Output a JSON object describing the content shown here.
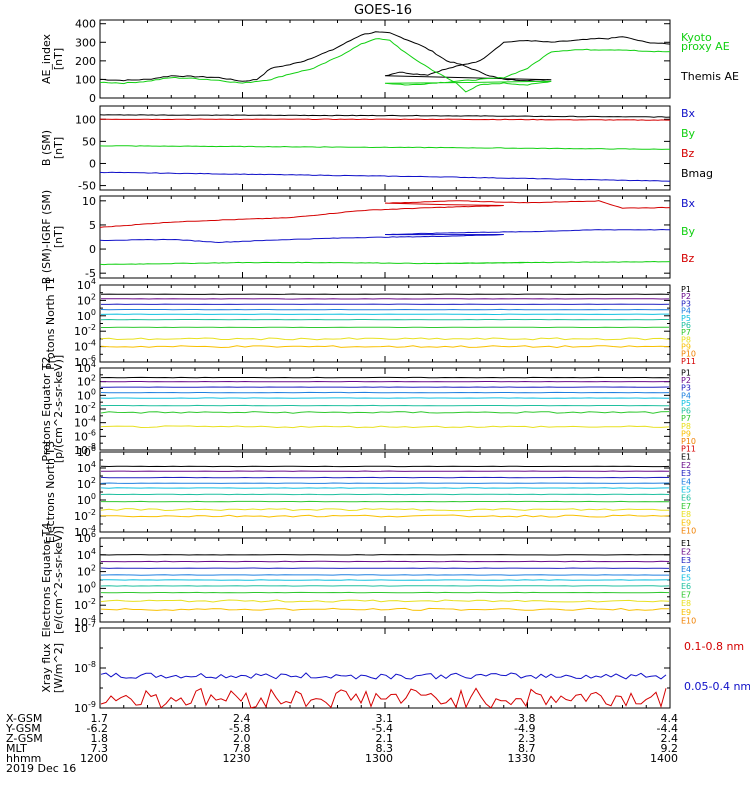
{
  "title": "GOES-16",
  "colors": {
    "black": "#000000",
    "red": "#d40000",
    "green": "#12d012",
    "blue": "#1010c8",
    "ch": [
      "#000000",
      "#6a0a8a",
      "#2020c0",
      "#2080e0",
      "#10c0e0",
      "#20c0a0",
      "#30c830",
      "#e8e020",
      "#f8c000",
      "#f08000",
      "#d40000"
    ]
  },
  "chart_data": [
    {
      "type": "line",
      "ylabel": "AE_index [nT]",
      "yticks": [
        "400",
        "300",
        "200",
        "100",
        "0"
      ],
      "ylim": [
        0,
        420
      ],
      "legend": [
        "Kyoto",
        "proxy AE",
        "Themis AE"
      ],
      "series": [
        {
          "name": "Themis AE",
          "color": "black",
          "x": [
            1200,
            1205,
            1210,
            1215,
            1220,
            1225,
            1230,
            1233,
            1236,
            1240,
            1243,
            1246,
            1249,
            1252,
            1255,
            1258,
            1261,
            1264,
            1267,
            1270,
            1273,
            1276,
            1279,
            1282,
            1285,
            1290,
            1295,
            1300,
            1303,
            1306,
            1309,
            1312,
            1315,
            1320,
            1325,
            1330,
            1335,
            1340,
            1345,
            1347,
            1350,
            1355,
            1360
          ],
          "y": [
            100,
            95,
            100,
            120,
            115,
            110,
            90,
            100,
            160,
            180,
            200,
            230,
            260,
            300,
            340,
            355,
            350,
            320,
            290,
            250,
            200,
            180,
            150,
            120,
            100,
            95,
            100,
            120,
            140,
            130,
            125,
            150,
            170,
            200,
            300,
            310,
            300,
            310,
            320,
            320,
            330,
            300,
            290
          ]
        },
        {
          "name": "Kyoto",
          "color": "green",
          "x": [
            1200,
            1205,
            1210,
            1215,
            1220,
            1225,
            1230,
            1236,
            1240,
            1245,
            1250,
            1255,
            1258,
            1261,
            1265,
            1270,
            1275,
            1277,
            1280,
            1285,
            1290,
            1295,
            1300,
            1305,
            1310,
            1315,
            1320,
            1325,
            1330,
            1335,
            1340,
            1345,
            1350,
            1355,
            1360
          ],
          "y": [
            85,
            80,
            90,
            110,
            105,
            95,
            80,
            100,
            130,
            160,
            220,
            290,
            320,
            310,
            230,
            150,
            80,
            35,
            70,
            80,
            70,
            90,
            80,
            70,
            80,
            90,
            100,
            110,
            160,
            250,
            260,
            260,
            260,
            250,
            250
          ]
        }
      ]
    },
    {
      "type": "line",
      "ylabel": "B (SM) [nT]",
      "yticks": [
        "100",
        "50",
        "0",
        "-50"
      ],
      "ylim": [
        -60,
        130
      ],
      "legend": [
        "Bx",
        "By",
        "Bz",
        "Bmag"
      ],
      "series": [
        {
          "name": "Bmag",
          "color": "black",
          "x": [
            1200,
            1270,
            1360
          ],
          "y": [
            110,
            108,
            105
          ]
        },
        {
          "name": "Bz",
          "color": "red",
          "x": [
            1200,
            1270,
            1360
          ],
          "y": [
            100,
            100,
            98
          ]
        },
        {
          "name": "By",
          "color": "green",
          "x": [
            1200,
            1270,
            1360
          ],
          "y": [
            40,
            36,
            32
          ]
        },
        {
          "name": "Bx",
          "color": "blue",
          "x": [
            1200,
            1270,
            1360
          ],
          "y": [
            -20,
            -30,
            -40
          ]
        }
      ]
    },
    {
      "type": "line",
      "ylabel": "B (SM)-IGRF (SM) [nT]",
      "yticks": [
        "10",
        "5",
        "0",
        "-5"
      ],
      "ylim": [
        -6,
        11
      ],
      "legend": [
        "Bx",
        "By",
        "Bz"
      ],
      "series": [
        {
          "name": "Bz",
          "color": "red",
          "x": [
            1200,
            1215,
            1225,
            1240,
            1255,
            1270,
            1285,
            1300,
            1315,
            1330,
            1345,
            1350,
            1360
          ],
          "y": [
            4.5,
            5.6,
            6,
            6.5,
            8,
            8.6,
            9,
            9.5,
            10,
            9.6,
            10,
            8.5,
            8.6
          ]
        },
        {
          "name": "Bx",
          "color": "blue",
          "x": [
            1200,
            1215,
            1225,
            1240,
            1255,
            1270,
            1285,
            1300,
            1315,
            1330,
            1345,
            1360
          ],
          "y": [
            1.8,
            2,
            1.4,
            2,
            2.4,
            2.6,
            3,
            3,
            3.4,
            3.6,
            4,
            4
          ]
        },
        {
          "name": "By",
          "color": "green",
          "x": [
            1200,
            1215,
            1230,
            1250,
            1270,
            1290,
            1310,
            1330,
            1360
          ],
          "y": [
            -3.2,
            -3,
            -2.8,
            -2.8,
            -3,
            -2.8,
            -3,
            -2.8,
            -2.6
          ]
        }
      ]
    },
    {
      "type": "line",
      "scale": "log",
      "ylabel": "Protons North T1",
      "yticks": [
        "10^4",
        "10^2",
        "10^0",
        "10^-2",
        "10^-4",
        "10^-6"
      ],
      "ylim": [
        -6,
        4
      ],
      "legend": [
        "P1",
        "P2",
        "P3",
        "P4",
        "P5",
        "P6",
        "P7",
        "P8",
        "P9",
        "P10",
        "P11"
      ],
      "series": [
        {
          "name": "P1",
          "y": 2.8
        },
        {
          "name": "P2",
          "y": 2.2
        },
        {
          "name": "P3",
          "y": 1.5
        },
        {
          "name": "P4",
          "y": 0.8
        },
        {
          "name": "P5",
          "y": 0.2
        },
        {
          "name": "P6",
          "y": -0.5
        },
        {
          "name": "P7",
          "y": -1.5
        },
        {
          "name": "P8",
          "y": -3.0
        },
        {
          "name": "P9",
          "y": -4.0
        }
      ]
    },
    {
      "type": "line",
      "scale": "log",
      "ylabel": "Protons Equator T2 [p/(cm^2-s-sr-keV)]",
      "yticks": [
        "10^4",
        "10^2",
        "10^0",
        "10^-2",
        "10^-4",
        "10^-6",
        "10^-8"
      ],
      "ylim": [
        -8,
        4
      ],
      "legend": [
        "P1",
        "P2",
        "P3",
        "P4",
        "P5",
        "P6",
        "P7",
        "P8",
        "P9",
        "P10",
        "P11"
      ],
      "series": [
        {
          "name": "P1",
          "y": 2.6
        },
        {
          "name": "P2",
          "y": 2.0
        },
        {
          "name": "P3",
          "y": 1.2
        },
        {
          "name": "P4",
          "y": 0.4
        },
        {
          "name": "P5",
          "y": -0.4
        },
        {
          "name": "P6",
          "y": -1.5
        },
        {
          "name": "P7",
          "y": -2.5
        },
        {
          "name": "P8",
          "y": -4.6
        }
      ]
    },
    {
      "type": "line",
      "scale": "log",
      "ylabel": "Electrons North T3",
      "yticks": [
        "10^6",
        "10^4",
        "10^2",
        "10^0",
        "10^-2",
        "10^-4"
      ],
      "ylim": [
        -4,
        6
      ],
      "legend": [
        "E1",
        "E2",
        "E3",
        "E4",
        "E5",
        "E6",
        "E7",
        "E8",
        "E9",
        "E10"
      ],
      "series": [
        {
          "name": "E1",
          "y": 4.2
        },
        {
          "name": "E2",
          "y": 3.6
        },
        {
          "name": "E3",
          "y": 2.8
        },
        {
          "name": "E4",
          "y": 2.1
        },
        {
          "name": "E5",
          "y": 1.5
        },
        {
          "name": "E6",
          "y": 0.7
        },
        {
          "name": "E7",
          "y": -0.2
        },
        {
          "name": "E8",
          "y": -1.2
        },
        {
          "name": "E9",
          "y": -2.0
        }
      ]
    },
    {
      "type": "line",
      "scale": "log",
      "ylabel": "Electrons Equator T4 [e/(cm^2-s-sr-keV)]",
      "yticks": [
        "10^6",
        "10^4",
        "10^2",
        "10^0",
        "10^-2",
        "10^-4"
      ],
      "ylim": [
        -4,
        6
      ],
      "legend": [
        "E1",
        "E2",
        "E3",
        "E4",
        "E5",
        "E6",
        "E7",
        "E8",
        "E9",
        "E10"
      ],
      "series": [
        {
          "name": "E1",
          "y": 4.0
        },
        {
          "name": "E2",
          "y": 3.2
        },
        {
          "name": "E3",
          "y": 2.4
        },
        {
          "name": "E4",
          "y": 1.6
        },
        {
          "name": "E5",
          "y": 1.0
        },
        {
          "name": "E6",
          "y": 0.3
        },
        {
          "name": "E7",
          "y": -0.5
        },
        {
          "name": "E8",
          "y": -1.5
        },
        {
          "name": "E9",
          "y": -2.5
        }
      ]
    },
    {
      "type": "line",
      "scale": "log",
      "ylabel": "Xray flux [W/m^2]",
      "yticks": [
        "10^-7",
        "10^-8",
        "10^-9"
      ],
      "ylim": [
        -9,
        -7
      ],
      "legend": [
        "0.1-0.8 nm",
        "0.05-0.4 nm"
      ],
      "series": [
        {
          "name": "0.05-0.4 nm",
          "y": -8.2
        },
        {
          "name": "0.1-0.8 nm",
          "y": -8.75
        }
      ]
    }
  ],
  "footer": {
    "labels": [
      "X-GSM",
      "Y-GSM",
      "Z-GSM",
      "MLT",
      "hhmm",
      "2019 Dec 16"
    ],
    "columns": [
      [
        "1.7",
        "-6.2",
        "1.8",
        "7.3",
        "1200"
      ],
      [
        "2.4",
        "-5.8",
        "2.0",
        "7.8",
        "1230"
      ],
      [
        "3.1",
        "-5.4",
        "2.1",
        "8.3",
        "1300"
      ],
      [
        "3.8",
        "-4.9",
        "2.3",
        "8.7",
        "1330"
      ],
      [
        "4.4",
        "-4.4",
        "2.4",
        "9.2",
        "1400"
      ]
    ]
  }
}
